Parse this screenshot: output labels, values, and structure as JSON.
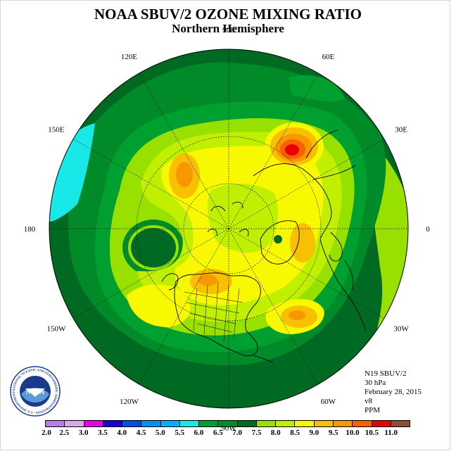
{
  "title": "NOAA SBUV/2 OZONE MIXING RATIO",
  "subtitle": "Northern Hemisphere",
  "longitude_labels": [
    {
      "text": "90E",
      "angle_deg": -90
    },
    {
      "text": "60E",
      "angle_deg": -60
    },
    {
      "text": "30E",
      "angle_deg": -30
    },
    {
      "text": "0",
      "angle_deg": 0
    },
    {
      "text": "30W",
      "angle_deg": 30
    },
    {
      "text": "60W",
      "angle_deg": 60
    },
    {
      "text": "90W",
      "angle_deg": 90
    },
    {
      "text": "120W",
      "angle_deg": 120
    },
    {
      "text": "150W",
      "angle_deg": 150
    },
    {
      "text": "180",
      "angle_deg": 180
    },
    {
      "text": "150E",
      "angle_deg": -150
    },
    {
      "text": "120E",
      "angle_deg": -120
    }
  ],
  "info": {
    "satellite": "N19 SBUV/2",
    "pressure": "30 hPa",
    "date": "February 28, 2015",
    "version": "v8",
    "units": "PPM"
  },
  "logo": {
    "text": "NOAA",
    "ring_text": "NATIONAL OCEANIC AND ATMOSPHERIC ADMINISTRATION · U.S. DEPARTMENT OF COMMERCE"
  },
  "colorbar": {
    "labels": [
      "2.0",
      "2.5",
      "3.0",
      "3.5",
      "4.0",
      "4.5",
      "5.0",
      "5.5",
      "6.0",
      "6.5",
      "7.0",
      "7.5",
      "8.0",
      "8.5",
      "9.0",
      "9.5",
      "10.0",
      "10.5",
      "11.0"
    ],
    "colors": [
      "#b77ee8",
      "#d9a6f0",
      "#e800e8",
      "#1a00d8",
      "#0050e8",
      "#0090f0",
      "#00b0f8",
      "#18e8e8",
      "#00a030",
      "#008a28",
      "#006a22",
      "#98e000",
      "#c0f000",
      "#f8f800",
      "#f8c000",
      "#f89800",
      "#f86000",
      "#e80000",
      "#8c5030"
    ]
  },
  "map": {
    "projection": "north polar stereographic",
    "palette": {
      "dark_green": "#006a22",
      "mid_green": "#008a28",
      "green": "#00a030",
      "light_green": "#98e000",
      "yellow_green": "#c0f000",
      "yellow": "#f8f800",
      "gold": "#f8c000",
      "orange": "#f89800",
      "dark_orange": "#f86000",
      "red": "#e80000",
      "cyan": "#18e8e8"
    }
  }
}
